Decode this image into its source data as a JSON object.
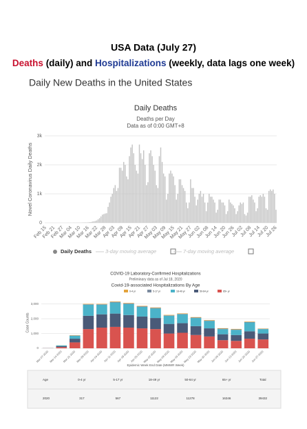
{
  "header": {
    "title": "USA Data (July 27)",
    "subtitle_parts": [
      "Deaths",
      "(daily) and",
      "Hospitalizations",
      "(weekly, data lags one week)"
    ],
    "section": "Daily New Deaths in the United States"
  },
  "chart_data": [
    {
      "type": "bar",
      "title": "Daily Deaths",
      "subtitle": "Deaths per Day",
      "note": "Data as of 0:00 GMT+8",
      "y_label": "Novel Coronavirus Daily Deaths",
      "color": "#c4c4c4",
      "grid": true,
      "ylim": [
        0,
        3000
      ],
      "yticks": [
        0,
        {
          "value": 1000,
          "label": "1k"
        },
        {
          "value": 2000,
          "label": "2k"
        },
        {
          "value": 3000,
          "label": "3k"
        }
      ],
      "categories": [
        "Feb 15",
        null,
        null,
        null,
        null,
        null,
        "Feb 21",
        null,
        null,
        null,
        null,
        null,
        "Feb 27",
        null,
        null,
        null,
        null,
        null,
        "Mar 04",
        null,
        null,
        null,
        null,
        null,
        "Mar 10",
        null,
        null,
        null,
        null,
        null,
        "Mar 16",
        null,
        null,
        null,
        null,
        null,
        "Mar 22",
        null,
        null,
        null,
        null,
        null,
        "Mar 28",
        null,
        null,
        null,
        null,
        null,
        "Apr 03",
        null,
        null,
        null,
        null,
        null,
        "Apr 09",
        null,
        null,
        null,
        null,
        null,
        "Apr 15",
        null,
        null,
        null,
        null,
        null,
        "Apr 21",
        null,
        null,
        null,
        null,
        null,
        "Apr 27",
        null,
        null,
        null,
        null,
        null,
        "May 03",
        null,
        null,
        null,
        null,
        null,
        "May 09",
        null,
        null,
        null,
        null,
        null,
        "May 15",
        null,
        null,
        null,
        null,
        null,
        "May 21",
        null,
        null,
        null,
        null,
        null,
        "May 27",
        null,
        null,
        null,
        null,
        null,
        "Jun 02",
        null,
        null,
        null,
        null,
        null,
        "Jun 08",
        null,
        null,
        null,
        null,
        null,
        "Jun 14",
        null,
        null,
        null,
        null,
        null,
        "Jun 20",
        null,
        null,
        null,
        null,
        null,
        "Jun 26",
        null,
        null,
        null,
        null,
        null,
        "Jul 02",
        null,
        null,
        null,
        null,
        null,
        "Jul 08",
        null,
        null,
        null,
        null,
        null,
        "Jul 14",
        null,
        null,
        null,
        null,
        null,
        "Jul 20",
        null,
        null,
        null,
        null,
        null,
        "Jul 26"
      ],
      "values": [
        0,
        0,
        0,
        0,
        0,
        0,
        0,
        0,
        0,
        0,
        0,
        0,
        0,
        0,
        0,
        0,
        1,
        0,
        2,
        1,
        3,
        2,
        3,
        4,
        3,
        5,
        8,
        10,
        12,
        10,
        15,
        20,
        25,
        40,
        50,
        60,
        80,
        120,
        160,
        220,
        280,
        300,
        320,
        330,
        550,
        700,
        900,
        1000,
        1200,
        1300,
        1100,
        1200,
        1900,
        1900,
        1800,
        2100,
        2000,
        1600,
        1500,
        2300,
        2600,
        2700,
        2400,
        2000,
        1800,
        1700,
        2700,
        2400,
        2200,
        2500,
        2000,
        1300,
        1400,
        2400,
        2500,
        2300,
        2000,
        1800,
        1300,
        1200,
        2300,
        2600,
        2100,
        1700,
        1600,
        800,
        1000,
        1700,
        1800,
        1700,
        1600,
        1300,
        800,
        1000,
        1500,
        1500,
        1300,
        1200,
        1100,
        700,
        500,
        700,
        1500,
        1200,
        1200,
        900,
        600,
        800,
        1000,
        1100,
        900,
        1000,
        700,
        400,
        700,
        1000,
        900,
        900,
        800,
        700,
        350,
        450,
        800,
        800,
        700,
        700,
        600,
        300,
        400,
        800,
        700,
        650,
        600,
        500,
        300,
        400,
        600,
        700,
        650,
        700,
        300,
        250,
        350,
        900,
        900,
        950,
        800,
        700,
        400,
        500,
        900,
        950,
        900,
        1000,
        900,
        500,
        450,
        1100,
        1150,
        1100,
        1150,
        1000,
        450
      ],
      "legend": [
        "Daily Deaths",
        "3-day moving average",
        "7-day moving average"
      ]
    },
    {
      "type": "stacked_bar",
      "title": "COVID-19 Laboratory-Confirmed Hospitalizations",
      "subtitle": "Preliminary data as of Jul 18, 2020",
      "chart_title": "Covid-19-associated Hospitalizations By Age",
      "y_label": "Case Counts",
      "x_label": "Epidemic Week End Date (MMWR Week)",
      "grid": true,
      "ylim": [
        0,
        3500
      ],
      "yticks": [
        0,
        {
          "value": 1000,
          "label": "1,000"
        },
        {
          "value": 2000,
          "label": "2,000"
        },
        {
          "value": 3000,
          "label": "3,000"
        }
      ],
      "categories": [
        "Mar-07-2020",
        "Mar-14-2020",
        "Mar-21-2020",
        "Mar-28-2020",
        "Apr-04-2020",
        "Apr-11-2020",
        "Apr-18-2020",
        "Apr-25-2020",
        "May-02-2020",
        "May-09-2020",
        "May-16-2020",
        "May-23-2020",
        "May-30-2020",
        "Jun-06-2020",
        "Jun-13-2020",
        "Jun-20-2020",
        "Jun-27-2020"
      ],
      "series": [
        {
          "name": "65+ yr",
          "color": "#d9534f",
          "values": [
            10,
            80,
            400,
            1300,
            1400,
            1450,
            1400,
            1350,
            1300,
            1000,
            1050,
            900,
            800,
            550,
            500,
            650,
            600
          ]
        },
        {
          "name": "50-64 yr",
          "color": "#4a5a78",
          "values": [
            5,
            60,
            250,
            900,
            900,
            900,
            850,
            800,
            750,
            650,
            650,
            600,
            550,
            400,
            400,
            500,
            400
          ]
        },
        {
          "name": "18-49 yr",
          "color": "#4bb3c9",
          "values": [
            5,
            50,
            200,
            750,
            650,
            750,
            750,
            650,
            650,
            550,
            600,
            550,
            500,
            350,
            350,
            600,
            300
          ]
        },
        {
          "name": "5-17 yr",
          "color": "#7b8a9e",
          "values": [
            0,
            5,
            20,
            30,
            30,
            40,
            40,
            40,
            30,
            30,
            30,
            30,
            30,
            30,
            30,
            30,
            20
          ]
        },
        {
          "name": "0-4 yr",
          "color": "#e3a33c",
          "values": [
            0,
            5,
            20,
            30,
            30,
            30,
            30,
            30,
            30,
            30,
            30,
            30,
            30,
            30,
            30,
            30,
            20
          ]
        }
      ]
    }
  ],
  "table": {
    "header": [
      "Age",
      "0-4 yr",
      "5-17 yr",
      "18-49 yr",
      "50-64 yr",
      "65+ yr",
      "Total"
    ],
    "rows": [
      [
        "2020",
        "317",
        "567",
        "11122",
        "11278",
        "16346",
        "39432"
      ]
    ]
  }
}
